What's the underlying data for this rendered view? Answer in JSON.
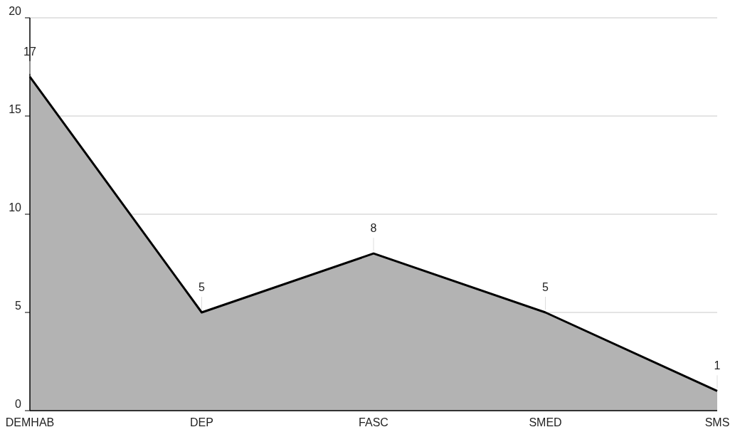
{
  "chart_data": {
    "type": "area",
    "categories": [
      "DEMHAB",
      "DEP",
      "FASC",
      "SMED",
      "SMS"
    ],
    "series": [
      {
        "color": "#b3b3b3",
        "values": [
          17,
          5,
          8,
          5,
          1
        ]
      }
    ],
    "ylim": [
      0,
      20
    ],
    "yticks": [
      0,
      5,
      10,
      15,
      20
    ],
    "grid": "y",
    "data_labels": true
  }
}
